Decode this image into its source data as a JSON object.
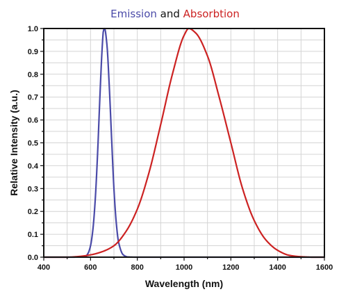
{
  "chart_data": {
    "type": "line",
    "title": {
      "parts": [
        {
          "text": "Emission",
          "color": "#4a4aa8"
        },
        {
          "text": " and ",
          "color": "#111111"
        },
        {
          "text": "Absorbtion",
          "color": "#cc2222"
        }
      ]
    },
    "xlabel": "Wavelength (nm)",
    "ylabel": "Relative Intensity (a.u.)",
    "xlim": [
      400,
      1600
    ],
    "ylim": [
      0,
      1.0
    ],
    "xticks": [
      400,
      600,
      800,
      1000,
      1200,
      1400,
      1600
    ],
    "xtick_labels": [
      "400",
      "600",
      "800",
      "1000",
      "1200",
      "1400",
      "1600"
    ],
    "yticks": [
      0.0,
      0.1,
      0.2,
      0.3,
      0.4,
      0.5,
      0.6,
      0.7,
      0.8,
      0.9,
      1.0
    ],
    "ytick_labels": [
      "0.0",
      "0.1",
      "0.2",
      "0.3",
      "0.4",
      "0.5",
      "0.6",
      "0.7",
      "0.8",
      "0.9",
      "1.0"
    ],
    "grid": true,
    "legend": "none",
    "series": [
      {
        "color": "#4a4aa8",
        "x": [
          400,
          520,
          560,
          580,
          590,
          600,
          610,
          620,
          630,
          640,
          650,
          655,
          660,
          670,
          680,
          690,
          700,
          710,
          720,
          740,
          760,
          800,
          1600
        ],
        "y": [
          0.0,
          0.0,
          0.001,
          0.005,
          0.018,
          0.05,
          0.12,
          0.25,
          0.45,
          0.7,
          0.92,
          0.99,
          1.0,
          0.93,
          0.75,
          0.52,
          0.3,
          0.15,
          0.065,
          0.01,
          0.001,
          0.0,
          0.0
        ]
      },
      {
        "color": "#cc2222",
        "x": [
          400,
          500,
          550,
          600,
          650,
          700,
          750,
          800,
          850,
          900,
          950,
          1000,
          1020,
          1050,
          1100,
          1150,
          1200,
          1250,
          1300,
          1350,
          1400,
          1450,
          1500,
          1550,
          1600
        ],
        "y": [
          0.0,
          0.0,
          0.003,
          0.01,
          0.024,
          0.05,
          0.11,
          0.21,
          0.37,
          0.58,
          0.8,
          0.97,
          1.0,
          0.98,
          0.88,
          0.7,
          0.5,
          0.3,
          0.16,
          0.075,
          0.03,
          0.008,
          0.002,
          0.0,
          0.0
        ]
      }
    ]
  }
}
